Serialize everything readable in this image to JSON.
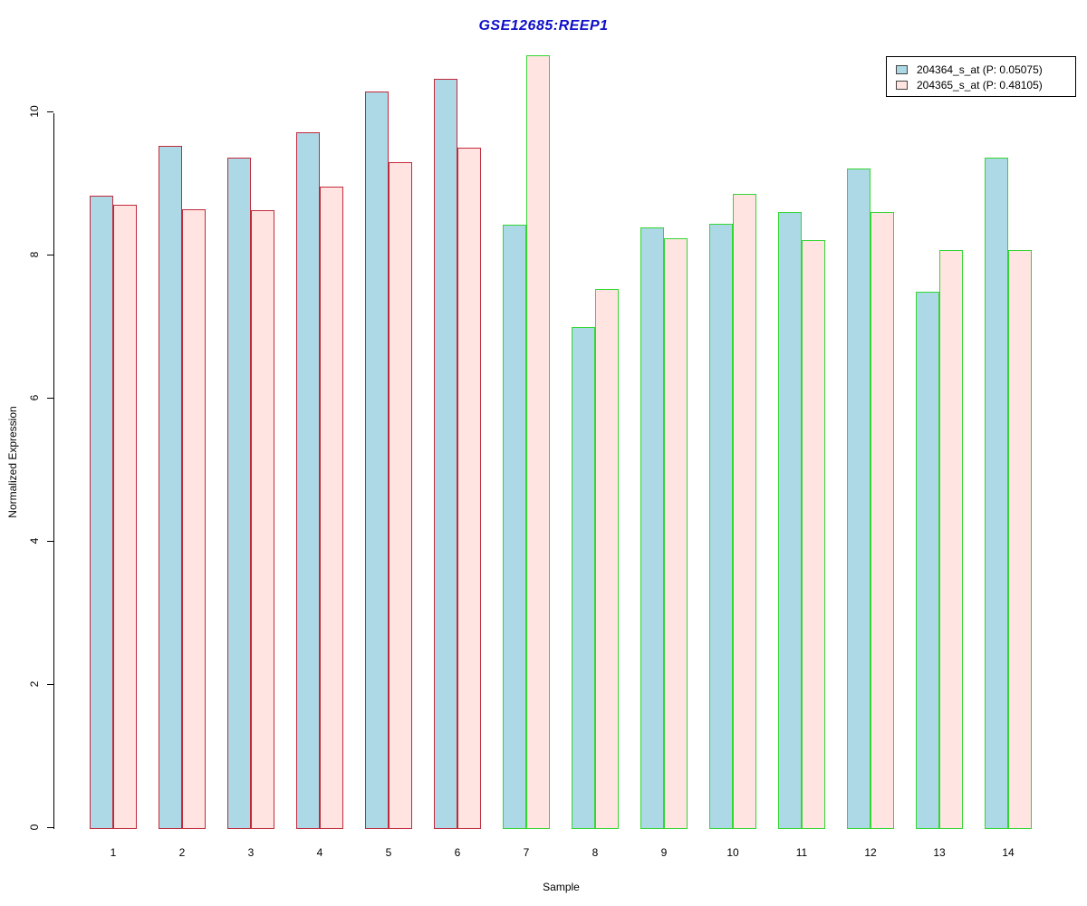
{
  "title": "GSE12685:REEP1",
  "colors": {
    "title_text": "#0E0EC8",
    "series1_fill": "#ADD8E6",
    "series2_fill": "#FFE4E1",
    "red_border": "#C02B3C",
    "green_border": "#33D633",
    "axis": "#000000",
    "legend_swatch_border": "#444444"
  },
  "legend": {
    "items": [
      {
        "label": "204364_s_at (P: 0.05075)",
        "swatch": "series1_fill"
      },
      {
        "label": "204365_s_at (P: 0.48105)",
        "swatch": "series2_fill"
      }
    ]
  },
  "chart_data": {
    "type": "bar",
    "title": "GSE12685:REEP1",
    "xlabel": "Sample",
    "ylabel": "Normalized Expression",
    "ylim": [
      0,
      11
    ],
    "yticks": [
      0,
      2,
      4,
      6,
      8,
      10
    ],
    "grid": false,
    "legend_position": "top-right",
    "categories": [
      "1",
      "2",
      "3",
      "4",
      "5",
      "6",
      "7",
      "8",
      "9",
      "10",
      "11",
      "12",
      "13",
      "14"
    ],
    "series": [
      {
        "name": "204364_s_at",
        "p_label": "P: 0.05075",
        "fill": "#ADD8E6",
        "values": [
          8.85,
          9.55,
          9.38,
          9.74,
          10.31,
          10.48,
          8.44,
          7.01,
          8.4,
          8.46,
          8.62,
          9.23,
          7.5,
          9.38
        ]
      },
      {
        "name": "204365_s_at",
        "p_label": "P: 0.48105",
        "fill": "#FFE4E1",
        "values": [
          8.72,
          8.66,
          8.64,
          8.97,
          9.32,
          9.52,
          10.81,
          7.55,
          8.25,
          8.87,
          8.23,
          8.62,
          8.09,
          8.09
        ]
      }
    ],
    "sample_border_colors": [
      "red",
      "red",
      "red",
      "red",
      "red",
      "red",
      "green",
      "green",
      "green",
      "green",
      "green",
      "green",
      "green",
      "green"
    ]
  }
}
